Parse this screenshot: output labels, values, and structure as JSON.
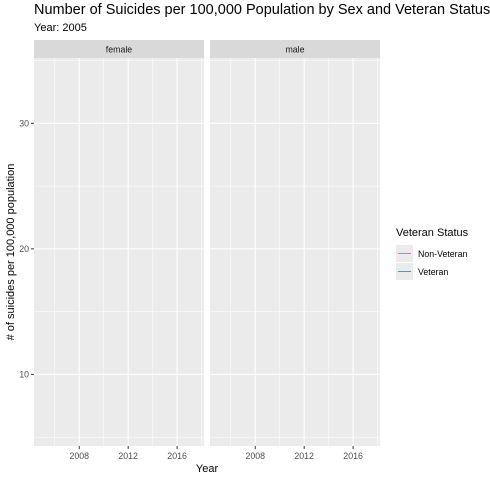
{
  "chart_data": {
    "type": "line",
    "title": "Number of Suicides per 100,000 Population by Sex and Veteran Status",
    "subtitle": "Year: 2005",
    "xlabel": "Year",
    "ylabel": "# of suicides per 100,000 population",
    "facets": [
      "female",
      "male"
    ],
    "xlim": [
      2004.3,
      2018.2
    ],
    "ylim": [
      4.3,
      35.2
    ],
    "x_ticks": [
      2008,
      2012,
      2016
    ],
    "y_ticks": [
      10,
      20,
      30
    ],
    "grid": true,
    "legend": {
      "title": "Veteran Status",
      "position": "right",
      "entries": [
        {
          "label": "Non-Veteran",
          "color": "#F8766D"
        },
        {
          "label": "Veteran",
          "color": "#00BFC4"
        }
      ]
    },
    "series": []
  }
}
